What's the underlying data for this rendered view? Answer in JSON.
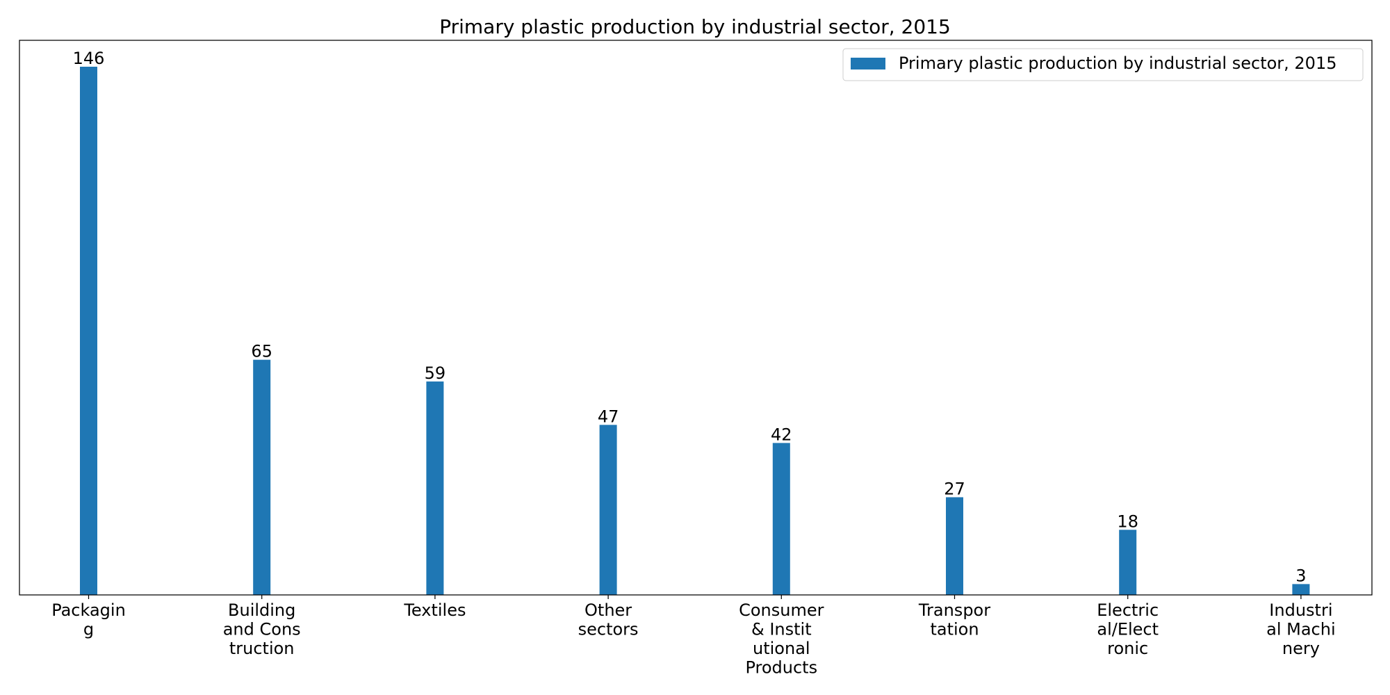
{
  "chart_data": {
    "type": "bar",
    "title": "Primary plastic production by industrial sector, 2015",
    "categories": [
      "Packaging",
      "Building and Construction",
      "Textiles",
      "Other sectors",
      "Consumer & Institutional Products",
      "Transportation",
      "Electrical/Electronic",
      "Industrial Machinery"
    ],
    "tick_label_lines": [
      [
        "Packagin",
        "g"
      ],
      [
        "Building",
        "and Cons",
        "truction"
      ],
      [
        "Textiles"
      ],
      [
        "Other",
        "sectors"
      ],
      [
        "Consumer",
        "& Instit",
        "utional",
        "Products"
      ],
      [
        "Transpor",
        "tation"
      ],
      [
        "Electric",
        "al/Elect",
        "ronic"
      ],
      [
        "Industri",
        "al Machi",
        "nery"
      ]
    ],
    "series": [
      {
        "name": "Primary plastic production by industrial sector, 2015",
        "values": [
          146,
          65,
          59,
          47,
          42,
          27,
          18,
          3
        ],
        "color": "#1f77b4"
      }
    ],
    "xlabel": "",
    "ylabel": "",
    "ylim": [
      0,
      153.3
    ],
    "y_ticks_visible": false,
    "grid": false,
    "legend_position": "upper right"
  }
}
